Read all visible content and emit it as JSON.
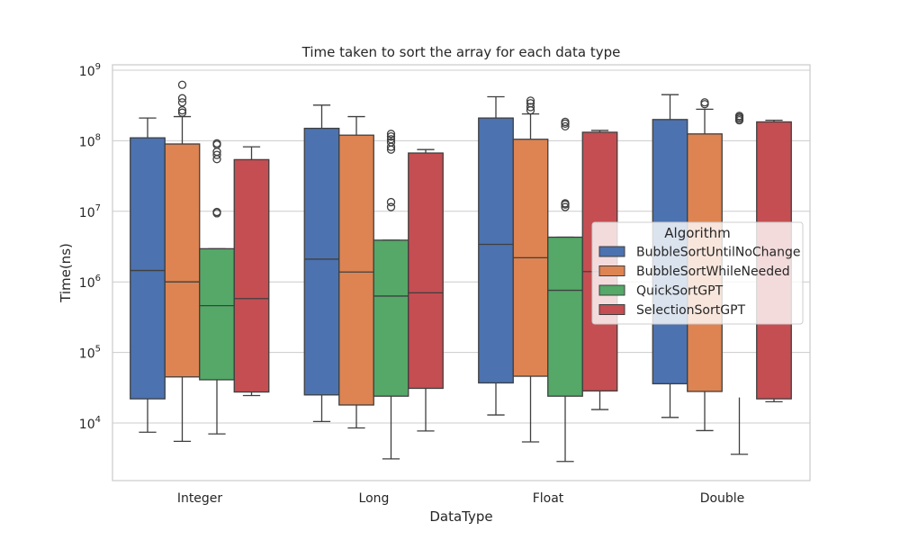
{
  "chart_data": {
    "type": "boxplot",
    "title": "Time taken to sort the array for each data type",
    "xlabel": "DataType",
    "ylabel": "Time(ns)",
    "yscale": "log",
    "ylim": [
      1500,
      1000000000
    ],
    "grid": true,
    "categories": [
      "Integer",
      "Long",
      "Float",
      "Double"
    ],
    "yticks": [
      {
        "base": "10",
        "exp": "4",
        "value": 10000
      },
      {
        "base": "10",
        "exp": "5",
        "value": 100000
      },
      {
        "base": "10",
        "exp": "6",
        "value": 1000000
      },
      {
        "base": "10",
        "exp": "7",
        "value": 10000000
      },
      {
        "base": "10",
        "exp": "8",
        "value": 100000000
      },
      {
        "base": "10",
        "exp": "9",
        "value": 1000000000
      }
    ],
    "legend": {
      "title": "Algorithm",
      "placement": "right"
    },
    "series": [
      {
        "name": "BubbleSortUntilNoChange",
        "color": "#4c72b0",
        "boxes": [
          {
            "whislo": 7400,
            "q1": 22000,
            "med": 1450000,
            "q3": 110000000,
            "whishi": 210000000,
            "fliers": []
          },
          {
            "whislo": 10500,
            "q1": 25000,
            "med": 2100000,
            "q3": 150000000,
            "whishi": 320000000,
            "fliers": []
          },
          {
            "whislo": 13000,
            "q1": 37000,
            "med": 3400000,
            "q3": 210000000,
            "whishi": 420000000,
            "fliers": []
          },
          {
            "whislo": 12000,
            "q1": 36000,
            "med": null,
            "q3": 200000000,
            "whishi": 450000000,
            "fliers": []
          }
        ]
      },
      {
        "name": "BubbleSortWhileNeeded",
        "color": "#dd8452",
        "boxes": [
          {
            "whislo": 5500,
            "q1": 45000,
            "med": 1000000,
            "q3": 90000000,
            "whishi": 220000000,
            "fliers": [
              250000000,
              270000000,
              350000000,
              400000000,
              620000000
            ]
          },
          {
            "whislo": 8500,
            "q1": 18000,
            "med": 1380000,
            "q3": 120000000,
            "whishi": 220000000,
            "fliers": []
          },
          {
            "whislo": 5400,
            "q1": 46000,
            "med": 2200000,
            "q3": 105000000,
            "whishi": 240000000,
            "fliers": [
              270000000,
              300000000,
              340000000,
              370000000
            ]
          },
          {
            "whislo": 7800,
            "q1": 28000,
            "med": null,
            "q3": 125000000,
            "whishi": 280000000,
            "fliers": [
              330000000,
              350000000
            ]
          }
        ]
      },
      {
        "name": "QuickSortGPT",
        "color": "#55a868",
        "boxes": [
          {
            "whislo": 7000,
            "q1": 41000,
            "med": 460000,
            "q3": 2950000,
            "whishi": 2950000,
            "fliers": [
              9400000,
              9800000,
              55000000,
              63000000,
              70000000,
              88000000,
              92000000
            ]
          },
          {
            "whislo": 3100,
            "q1": 24000,
            "med": 630000,
            "q3": 3900000,
            "whishi": 3900000,
            "fliers": [
              11500000,
              13500000,
              75000000,
              82000000,
              95000000,
              105000000,
              115000000,
              125000000
            ]
          },
          {
            "whislo": 2850,
            "q1": 24000,
            "med": 760000,
            "q3": 4300000,
            "whishi": 4300000,
            "fliers": [
              11500000,
              12500000,
              13000000,
              160000000,
              175000000,
              185000000
            ]
          },
          {
            "whislo": 3600,
            "q1": 23000,
            "med": null,
            "q3": null,
            "whishi": null,
            "fliers": [
              195000000,
              205000000,
              215000000,
              225000000
            ]
          }
        ]
      },
      {
        "name": "SelectionSortGPT",
        "color": "#c44e52",
        "boxes": [
          {
            "whislo": 24500,
            "q1": 27500,
            "med": 580000,
            "q3": 54000000,
            "whishi": 82000000,
            "fliers": []
          },
          {
            "whislo": 7700,
            "q1": 31000,
            "med": 700000,
            "q3": 67000000,
            "whishi": 75000000,
            "fliers": []
          },
          {
            "whislo": 15500,
            "q1": 28500,
            "med": 1400000,
            "q3": 132000000,
            "whishi": 140000000,
            "fliers": []
          },
          {
            "whislo": 20000,
            "q1": 22000,
            "med": null,
            "q3": 185000000,
            "whishi": 195000000,
            "fliers": []
          }
        ]
      }
    ]
  }
}
